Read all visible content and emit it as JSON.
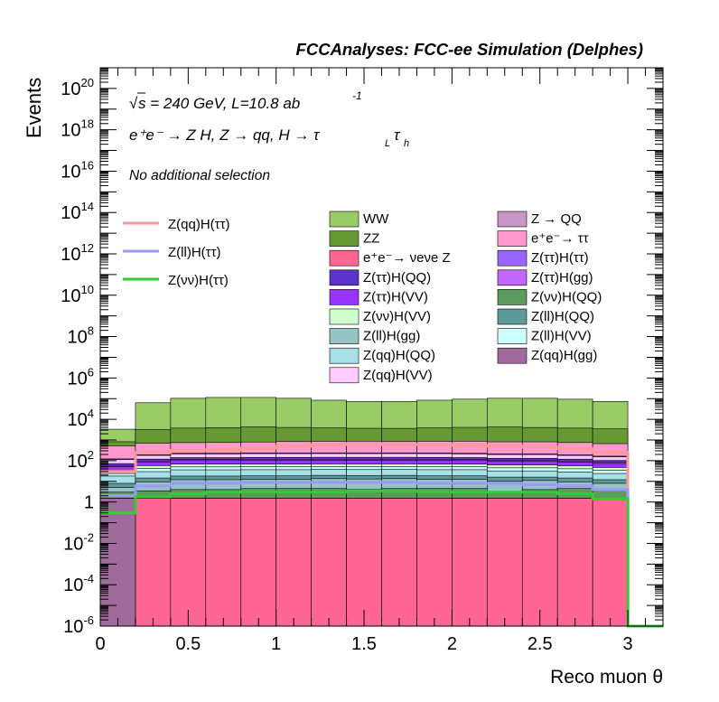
{
  "header": {
    "title": "FCCAnalyses: FCC-ee Simulation (Delphes)"
  },
  "labels": {
    "sqrt_s": "s = 240 GeV, L=10.8 ab",
    "lumi_exp": "-1",
    "process": "e⁺e⁻ → Z H, Z → qq, H → τ",
    "tau_l": "L",
    "tau": "τ",
    "tau_h": "h",
    "selection": "No additional selection",
    "sqrt_symbol": "√"
  },
  "chart_data": {
    "type": "histogram",
    "xlabel": "Reco muon θ",
    "ylabel": "Events",
    "xlim": [
      0,
      3.2
    ],
    "ylim": [
      1e-06,
      1e+21
    ],
    "yscale": "log",
    "x_ticks": [
      {
        "value": 0,
        "label": "0"
      },
      {
        "value": 0.5,
        "label": "0.5"
      },
      {
        "value": 1,
        "label": "1"
      },
      {
        "value": 1.5,
        "label": "1.5"
      },
      {
        "value": 2,
        "label": "2"
      },
      {
        "value": 2.5,
        "label": "2.5"
      },
      {
        "value": 3,
        "label": "3"
      }
    ],
    "y_ticks": [
      {
        "value": 1e-06,
        "base": "10",
        "exp": "-6"
      },
      {
        "value": 0.0001,
        "base": "10",
        "exp": "-4"
      },
      {
        "value": 0.01,
        "base": "10",
        "exp": "-2"
      },
      {
        "value": 1,
        "base": "1",
        "exp": ""
      },
      {
        "value": 100.0,
        "base": "10",
        "exp": "2"
      },
      {
        "value": 10000.0,
        "base": "10",
        "exp": "4"
      },
      {
        "value": 1000000.0,
        "base": "10",
        "exp": "6"
      },
      {
        "value": 100000000.0,
        "base": "10",
        "exp": "8"
      },
      {
        "value": 10000000000.0,
        "base": "10",
        "exp": "10"
      },
      {
        "value": 1000000000000.0,
        "base": "10",
        "exp": "12"
      },
      {
        "value": 100000000000000.0,
        "base": "10",
        "exp": "14"
      },
      {
        "value": 1e+16,
        "base": "10",
        "exp": "16"
      },
      {
        "value": 1e+18,
        "base": "10",
        "exp": "18"
      },
      {
        "value": 1e+20,
        "base": "10",
        "exp": "20"
      }
    ],
    "bin_edges": [
      0,
      0.2,
      0.4,
      0.6,
      0.8,
      1.0,
      1.2,
      1.4,
      1.6,
      1.8,
      2.0,
      2.2,
      2.4,
      2.6,
      2.8,
      3.0
    ],
    "stack": [
      {
        "name": "Z(qq)H(gg)",
        "label": "Z(qq)H(gg)",
        "color": "#9e6b9a",
        "values": [
          1.5,
          1e-06,
          1e-06,
          1e-06,
          1e-06,
          1e-06,
          1e-06,
          1e-06,
          1e-06,
          1e-06,
          1e-06,
          1e-06,
          1e-06,
          1e-06,
          1e-06
        ]
      },
      {
        "name": "e+e- → νeνe Z",
        "label": "e⁺e⁻→ νeνe Z",
        "color": "#ff6694",
        "values": [
          1e-06,
          1.5,
          1.5,
          1.5,
          1.5,
          1.5,
          1.5,
          1.5,
          1.5,
          1.5,
          1.5,
          1.5,
          1.5,
          1.5,
          1.5
        ]
      },
      {
        "name": "Z → QQ",
        "label": "Z → QQ",
        "color": "#c897c8",
        "values": [
          1e-06,
          1e-06,
          0.012,
          1e-06,
          1e-06,
          1e-06,
          1e-06,
          1e-06,
          1e-06,
          1e-06,
          1e-06,
          1e-06,
          1e-06,
          1e-06,
          1e-06
        ]
      },
      {
        "name": "Z(νν)H(QQ)",
        "label": "Z(νν)H(QQ)",
        "color": "#5d9a5d",
        "values": [
          1.5,
          2,
          2.5,
          2.5,
          3,
          3,
          3,
          2.5,
          3,
          3,
          3,
          1.5,
          2.5,
          3,
          2.5
        ]
      },
      {
        "name": "Z(ll)H(gg)",
        "label": "Z(ll)H(gg)",
        "color": "#96c3c3",
        "values": [
          2,
          6,
          8,
          8,
          8,
          8,
          9,
          9,
          9,
          8,
          8,
          7,
          7,
          5,
          4
        ]
      },
      {
        "name": "Z(ll)H(QQ)",
        "label": "Z(ll)H(QQ)",
        "color": "#5e9999",
        "values": [
          3,
          5,
          6,
          6,
          6,
          6,
          6,
          6,
          6,
          6,
          6,
          6,
          5,
          5,
          4
        ]
      },
      {
        "name": "Z(qq)H(QQ)",
        "label": "Z(qq)H(QQ)",
        "color": "#a7e1e7",
        "values": [
          10,
          15,
          18,
          18,
          18,
          18,
          18,
          18,
          18,
          18,
          18,
          16,
          16,
          14,
          12
        ]
      },
      {
        "name": "Z(ll)H(VV)",
        "label": "Z(ll)H(VV)",
        "color": "#ccffff",
        "values": [
          6,
          12,
          14,
          14,
          14,
          14,
          14,
          14,
          14,
          14,
          14,
          13,
          13,
          12,
          10
        ]
      },
      {
        "name": "Z(νν)H(VV)",
        "label": "Z(νν)H(VV)",
        "color": "#d0ffd0",
        "values": [
          8,
          16,
          18,
          18,
          18,
          18,
          18,
          18,
          18,
          18,
          18,
          17,
          17,
          16,
          13
        ]
      },
      {
        "name": "Z(ττ)H(VV)",
        "label": "Z(ττ)H(VV)",
        "color": "#9933ff",
        "values": [
          20,
          30,
          34,
          34,
          36,
          36,
          36,
          36,
          36,
          36,
          34,
          32,
          32,
          30,
          26
        ]
      },
      {
        "name": "Z(ττ)H(gg)",
        "label": "Z(ττ)H(gg)",
        "color": "#c266ff",
        "values": [
          6,
          10,
          12,
          12,
          12,
          12,
          12,
          12,
          12,
          12,
          12,
          11,
          11,
          10,
          9
        ]
      },
      {
        "name": "Z(ττ)H(QQ)",
        "label": "Z(ττ)H(QQ)",
        "color": "#5c33cc",
        "values": [
          14,
          22,
          26,
          26,
          28,
          28,
          28,
          28,
          28,
          28,
          26,
          25,
          25,
          22,
          20
        ]
      },
      {
        "name": "Z(qq)H(VV)",
        "label": "Z(qq)H(VV)",
        "color": "#ffccff",
        "values": [
          40,
          60,
          70,
          70,
          75,
          75,
          75,
          75,
          75,
          75,
          70,
          68,
          68,
          60,
          50
        ]
      },
      {
        "name": "Z(ττ)H(ττ)",
        "label": "Z(ττ)H(ττ)",
        "color": "#9966ff",
        "values": [
          10,
          15,
          18,
          18,
          18,
          18,
          18,
          18,
          18,
          18,
          18,
          17,
          17,
          15,
          13
        ]
      },
      {
        "name": "e+e- → ττ",
        "label": "e⁺e⁻→ ττ",
        "color": "#ff99cc",
        "values": [
          400,
          500,
          520,
          530,
          560,
          600,
          620,
          640,
          600,
          620,
          640,
          600,
          600,
          560,
          500
        ]
      },
      {
        "name": "ZZ",
        "label": "ZZ",
        "color": "#669933",
        "values": [
          300,
          2500,
          3000,
          3200,
          3500,
          3200,
          3000,
          2800,
          2800,
          3000,
          3200,
          3400,
          3200,
          3000,
          2800
        ]
      },
      {
        "name": "WW",
        "label": "WW",
        "color": "#99cc66",
        "values": [
          2500,
          60000,
          100000,
          110000,
          110000,
          100000,
          80000,
          70000,
          70000,
          80000,
          90000,
          100000,
          100000,
          90000,
          70000
        ]
      }
    ],
    "signals": [
      {
        "name": "Z(qq)H(ττ)",
        "label": "Z(qq)H(ττ)",
        "color": "#ff9999",
        "values": [
          30,
          250,
          320,
          330,
          400,
          500,
          600,
          650,
          600,
          600,
          550,
          500,
          450,
          380,
          250
        ]
      },
      {
        "name": "Z(ll)H(ττ)",
        "label": "Z(ll)H(ττ)",
        "color": "#9999ff",
        "values": [
          2,
          6,
          8,
          8,
          9,
          9,
          9,
          9,
          9,
          8,
          8,
          8,
          7,
          6,
          4
        ]
      },
      {
        "name": "Z(νν)H(ττ)",
        "label": "Z(νν)H(ττ)",
        "color": "#33cc33",
        "values": [
          0.3,
          1.8,
          2.5,
          3.0,
          3.2,
          3.0,
          3.0,
          3.4,
          3.4,
          3.2,
          3.0,
          3.0,
          3.0,
          2.5,
          1.4
        ]
      }
    ],
    "legend_signal_placement": "upper-left",
    "legend_background_placement": "upper-right",
    "legend_columns": [
      [
        "WW",
        "ZZ",
        "e+e- → νeνe Z",
        "Z(ττ)H(QQ)",
        "Z(ττ)H(VV)",
        "Z(νν)H(VV)",
        "Z(ll)H(gg)",
        "Z(qq)H(QQ)",
        "Z(qq)H(VV)"
      ],
      [
        "Z → QQ",
        "e+e- → ττ",
        "Z(ττ)H(ττ)",
        "Z(ττ)H(gg)",
        "Z(νν)H(QQ)",
        "Z(ll)H(QQ)",
        "Z(ll)H(VV)",
        "Z(qq)H(gg)"
      ]
    ]
  }
}
